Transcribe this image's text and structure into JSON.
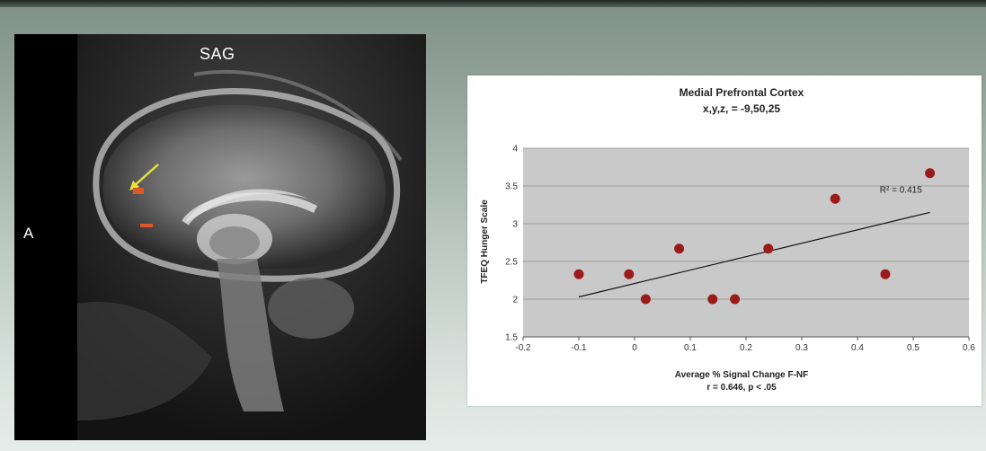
{
  "mri": {
    "view_label": "SAG",
    "orientation_label": "A",
    "arrow_color": "#e6e43a",
    "activation_color": "#e0552a"
  },
  "chart_data": {
    "type": "scatter",
    "title": "Medial Prefrontal Cortex",
    "subtitle": "x,y,z, = -9,50,25",
    "xlabel": "Average % Signal Change F-NF",
    "ylabel": "TFEQ Hunger Scale",
    "stat_text": "r = 0.646, p < .05",
    "xlim": [
      -0.2,
      0.6
    ],
    "ylim": [
      1.5,
      4
    ],
    "x_ticks": [
      "-0.2",
      "-0.1",
      "0",
      "0.1",
      "0.2",
      "0.3",
      "0.4",
      "0.5",
      "0.6"
    ],
    "y_ticks": [
      "1.5",
      "2",
      "2.5",
      "3",
      "3.5",
      "4"
    ],
    "grid": true,
    "plot_background": "#c9c9c9",
    "marker_color": "#9b1b1b",
    "series": [
      {
        "points": [
          {
            "x": -0.1,
            "y": 2.33
          },
          {
            "x": -0.01,
            "y": 2.33
          },
          {
            "x": 0.02,
            "y": 2.0
          },
          {
            "x": 0.08,
            "y": 2.67
          },
          {
            "x": 0.14,
            "y": 2.0
          },
          {
            "x": 0.18,
            "y": 2.0
          },
          {
            "x": 0.24,
            "y": 2.67
          },
          {
            "x": 0.36,
            "y": 3.33
          },
          {
            "x": 0.45,
            "y": 2.33
          },
          {
            "x": 0.53,
            "y": 3.67
          }
        ]
      }
    ],
    "trendline": {
      "x": [
        -0.1,
        0.53
      ],
      "y": [
        2.03,
        3.15
      ],
      "label": "R² = 0.415"
    }
  }
}
